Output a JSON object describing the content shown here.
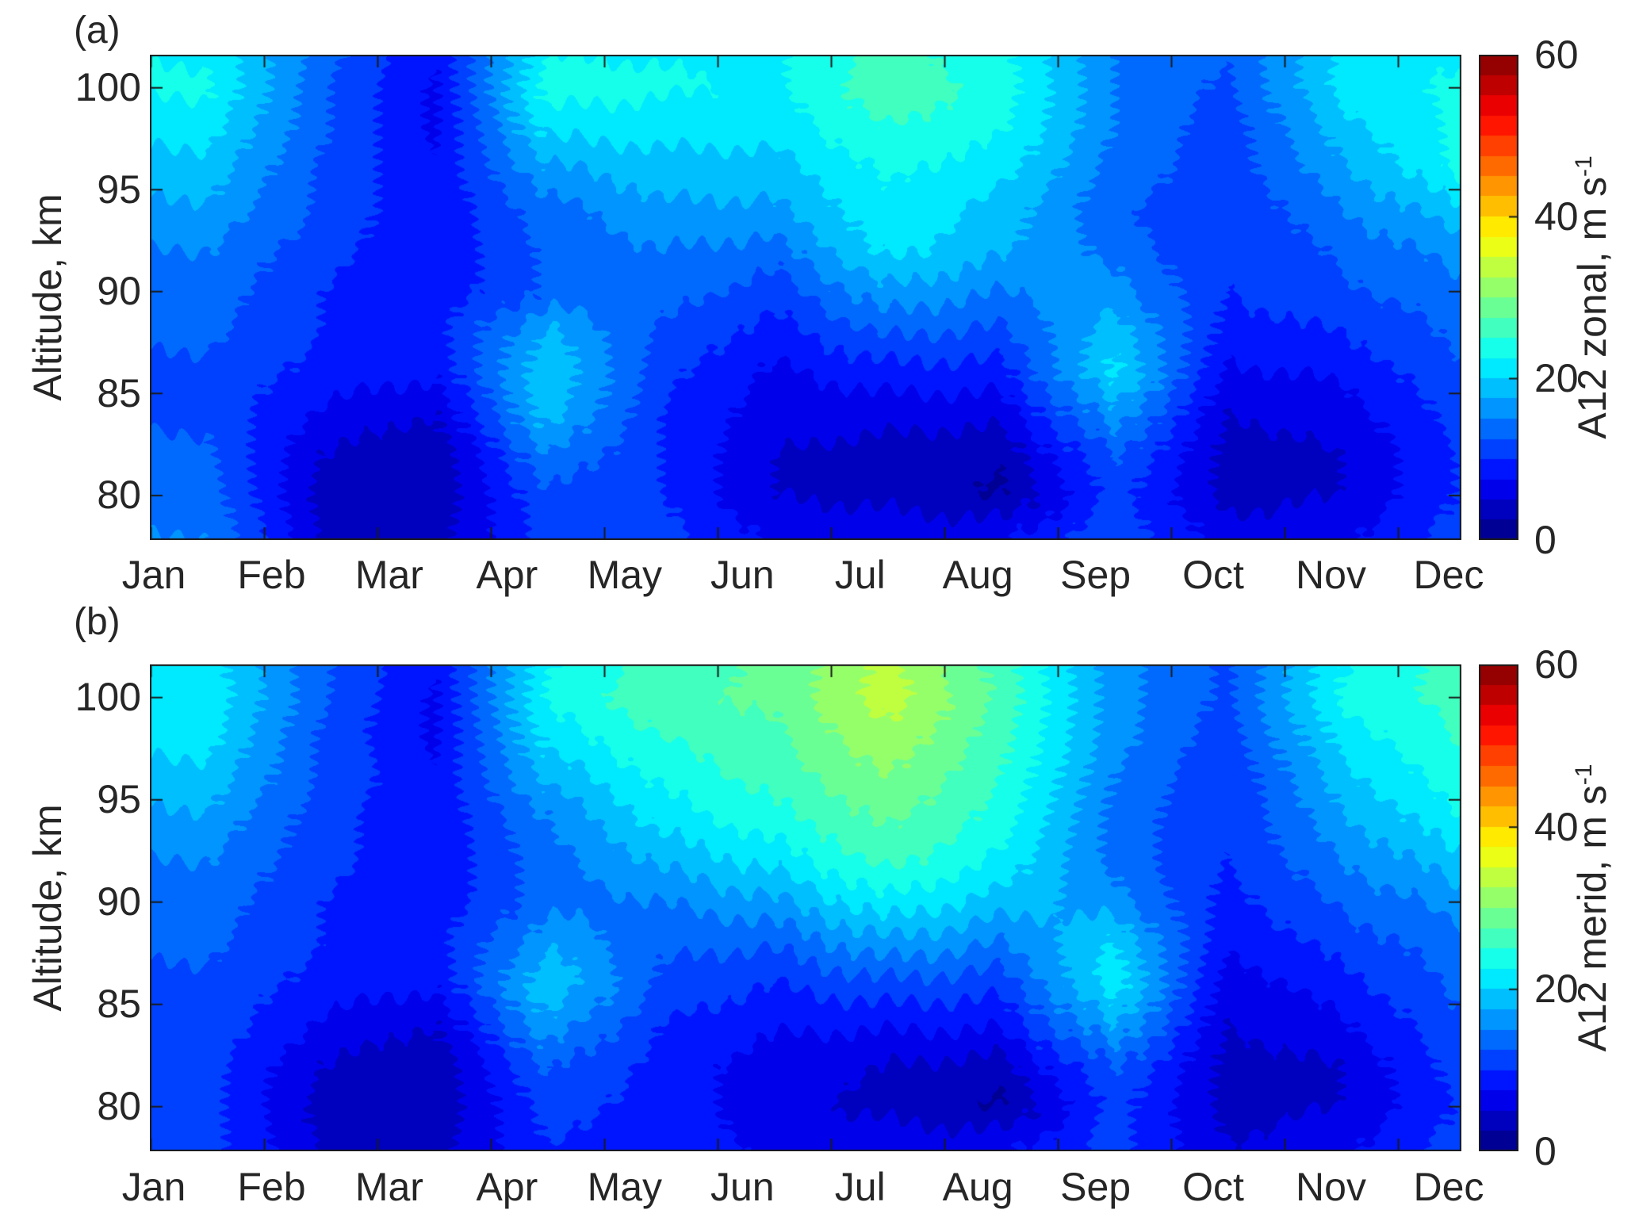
{
  "figure": {
    "panel_a": {
      "letter": "(a)",
      "ylabel": "Altitude, km",
      "colorbar_label_main": "A12 zonal, m s",
      "colorbar_label_sup": "-1"
    },
    "panel_b": {
      "letter": "(b)",
      "ylabel": "Altitude, km",
      "colorbar_label_main": "A12 merid, m s",
      "colorbar_label_sup": "-1"
    },
    "month_labels": [
      "Jan",
      "Feb",
      "Mar",
      "Apr",
      "May",
      "Jun",
      "Jul",
      "Aug",
      "Sep",
      "Oct",
      "Nov",
      "Dec"
    ],
    "y_tick_labels": [
      "100",
      "95",
      "90",
      "85",
      "80"
    ],
    "colorbar_tick_labels": [
      "60",
      "40",
      "20",
      "0"
    ]
  },
  "chart_data": [
    {
      "type": "heatmap",
      "subtype": "filled-contour",
      "panel": "(a)",
      "xlabel": "",
      "ylabel": "Altitude, km",
      "x_tick_labels": [
        "Jan",
        "Feb",
        "Mar",
        "Apr",
        "May",
        "Jun",
        "Jul",
        "Aug",
        "Sep",
        "Oct",
        "Nov",
        "Dec"
      ],
      "x_months": [
        1,
        2,
        3,
        4,
        5,
        6,
        7,
        8,
        9,
        10,
        11,
        12
      ],
      "y_ticks": [
        100,
        95,
        90,
        85,
        80
      ],
      "ylim": [
        77.8,
        101.6
      ],
      "altitudes_km": [
        102,
        100,
        98,
        96,
        94,
        92,
        90,
        88,
        86,
        84,
        82,
        80,
        78
      ],
      "values_m_per_s": [
        [
          22,
          14,
          8,
          22,
          22,
          22,
          26,
          23,
          15,
          13,
          20,
          22
        ],
        [
          23,
          13,
          7,
          24,
          23,
          22,
          27,
          24,
          15,
          12,
          21,
          23
        ],
        [
          21,
          13,
          7,
          21,
          21,
          21,
          25,
          23,
          15,
          11,
          19,
          23
        ],
        [
          19,
          12,
          8,
          17,
          19,
          19,
          23,
          21,
          14,
          11,
          17,
          23
        ],
        [
          17,
          12,
          8,
          14,
          17,
          17,
          22,
          19,
          13,
          10,
          15,
          19
        ],
        [
          15,
          11,
          8,
          13,
          15,
          14,
          21,
          18,
          14,
          10,
          13,
          16
        ],
        [
          14,
          10,
          8,
          13,
          14,
          11,
          17,
          15,
          16,
          10,
          12,
          14
        ],
        [
          13,
          10,
          9,
          18,
          12,
          9,
          13,
          12,
          19,
          9,
          10,
          13
        ],
        [
          12,
          9,
          8,
          20,
          11,
          7,
          9,
          9,
          21,
          7,
          8,
          12
        ],
        [
          12,
          7,
          5,
          19,
          10,
          6,
          6,
          6,
          17,
          5,
          6,
          11
        ],
        [
          13,
          5,
          3,
          15,
          10,
          5,
          4,
          3,
          13,
          4,
          5,
          10
        ],
        [
          14,
          4,
          3,
          12,
          10,
          5,
          4,
          2,
          11,
          4,
          5,
          10
        ],
        [
          15,
          5,
          4,
          11,
          11,
          7,
          7,
          7,
          12,
          6,
          7,
          11
        ]
      ],
      "colormap": "jet",
      "clim": [
        0,
        60
      ],
      "contour_level_step": 2.5,
      "colorbar_label": "A12 zonal, m s^-1",
      "colorbar_ticks": [
        0,
        20,
        40,
        60
      ],
      "legend_position": "right-colorbar",
      "grid": false
    },
    {
      "type": "heatmap",
      "subtype": "filled-contour",
      "panel": "(b)",
      "xlabel": "",
      "ylabel": "Altitude, km",
      "x_tick_labels": [
        "Jan",
        "Feb",
        "Mar",
        "Apr",
        "May",
        "Jun",
        "Jul",
        "Aug",
        "Sep",
        "Oct",
        "Nov",
        "Dec"
      ],
      "x_months": [
        1,
        2,
        3,
        4,
        5,
        6,
        7,
        8,
        9,
        10,
        11,
        12
      ],
      "y_ticks": [
        100,
        95,
        90,
        85,
        80
      ],
      "ylim": [
        77.8,
        101.6
      ],
      "altitudes_km": [
        102,
        100,
        98,
        96,
        94,
        92,
        90,
        88,
        86,
        84,
        82,
        80,
        78
      ],
      "values_m_per_s": [
        [
          21,
          13,
          8,
          22,
          26,
          28,
          33,
          26,
          16,
          12,
          22,
          26
        ],
        [
          22,
          13,
          7,
          23,
          27,
          28,
          34,
          27,
          16,
          12,
          23,
          26
        ],
        [
          21,
          12,
          7,
          21,
          25,
          27,
          32,
          26,
          16,
          11,
          21,
          25
        ],
        [
          19,
          12,
          8,
          18,
          23,
          26,
          30,
          25,
          15,
          10,
          19,
          24
        ],
        [
          17,
          11,
          8,
          15,
          21,
          24,
          28,
          24,
          14,
          10,
          17,
          22
        ],
        [
          15,
          11,
          8,
          14,
          18,
          21,
          26,
          22,
          14,
          10,
          15,
          19
        ],
        [
          14,
          10,
          8,
          14,
          15,
          17,
          22,
          19,
          16,
          9,
          13,
          16
        ],
        [
          13,
          10,
          9,
          17,
          13,
          13,
          17,
          15,
          20,
          8,
          11,
          14
        ],
        [
          12,
          9,
          8,
          20,
          12,
          10,
          12,
          11,
          22,
          6,
          9,
          13
        ],
        [
          12,
          7,
          5,
          17,
          10,
          8,
          8,
          8,
          18,
          5,
          7,
          12
        ],
        [
          11,
          5,
          3,
          13,
          9,
          6,
          5,
          4,
          13,
          4,
          5,
          11
        ],
        [
          11,
          4,
          3,
          11,
          9,
          6,
          4,
          2,
          11,
          4,
          5,
          10
        ],
        [
          11,
          5,
          4,
          10,
          9,
          7,
          7,
          7,
          11,
          5,
          7,
          11
        ]
      ],
      "colormap": "jet",
      "clim": [
        0,
        60
      ],
      "contour_level_step": 2.5,
      "colorbar_label": "A12 merid, m s^-1",
      "colorbar_ticks": [
        0,
        20,
        40,
        60
      ],
      "legend_position": "right-colorbar",
      "grid": false
    }
  ]
}
